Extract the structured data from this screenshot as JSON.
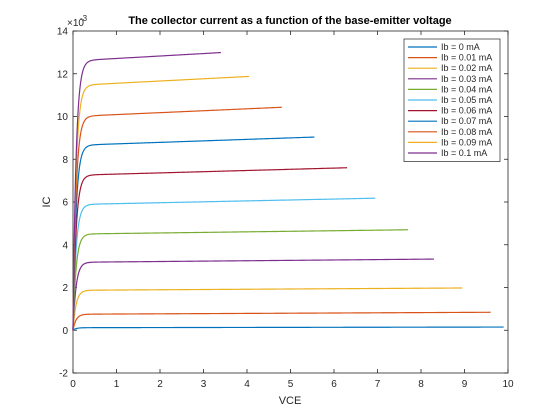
{
  "chart_data": {
    "type": "line",
    "title": "The collector current as a function of the base-emitter voltage",
    "xlabel": "VCE",
    "ylabel": "IC",
    "y_exponent_label": "×10",
    "y_exponent_power": "-3",
    "xlim": [
      0,
      10
    ],
    "ylim": [
      -2,
      14
    ],
    "xticks": [
      "0",
      "1",
      "2",
      "3",
      "4",
      "5",
      "6",
      "7",
      "8",
      "9",
      "10"
    ],
    "yticks": [
      "-2",
      "0",
      "2",
      "4",
      "6",
      "8",
      "10",
      "12",
      "14"
    ],
    "grid": false,
    "legend_position": "top-right",
    "series": [
      {
        "name": "Ib = 0 mA",
        "color": "#0072BD",
        "sat": 0.12,
        "slope": 0.003,
        "x_end": 9.9
      },
      {
        "name": "Ib = 0.01 mA",
        "color": "#D95319",
        "sat": 0.75,
        "slope": 0.0095,
        "x_end": 9.6
      },
      {
        "name": "Ib = 0.02 mA",
        "color": "#EDB120",
        "sat": 1.87,
        "slope": 0.012,
        "x_end": 8.95
      },
      {
        "name": "Ib = 0.03 mA",
        "color": "#7E2F8E",
        "sat": 3.18,
        "slope": 0.018,
        "x_end": 8.3
      },
      {
        "name": "Ib = 0.04 mA",
        "color": "#77AC30",
        "sat": 4.5,
        "slope": 0.026,
        "x_end": 7.7
      },
      {
        "name": "Ib = 0.05 mA",
        "color": "#4DBEEE",
        "sat": 5.88,
        "slope": 0.043,
        "x_end": 6.95
      },
      {
        "name": "Ib = 0.06 mA",
        "color": "#A2142F",
        "sat": 7.25,
        "slope": 0.056,
        "x_end": 6.3
      },
      {
        "name": "Ib = 0.07 mA",
        "color": "#0072BD",
        "sat": 8.65,
        "slope": 0.07,
        "x_end": 5.55
      },
      {
        "name": "Ib = 0.08 mA",
        "color": "#D95319",
        "sat": 10.0,
        "slope": 0.09,
        "x_end": 4.8
      },
      {
        "name": "Ib = 0.09 mA",
        "color": "#EDB120",
        "sat": 11.45,
        "slope": 0.105,
        "x_end": 4.05
      },
      {
        "name": "Ib = 0.1 mA",
        "color": "#7E2F8E",
        "sat": 12.6,
        "slope": 0.115,
        "x_end": 3.4
      }
    ]
  }
}
